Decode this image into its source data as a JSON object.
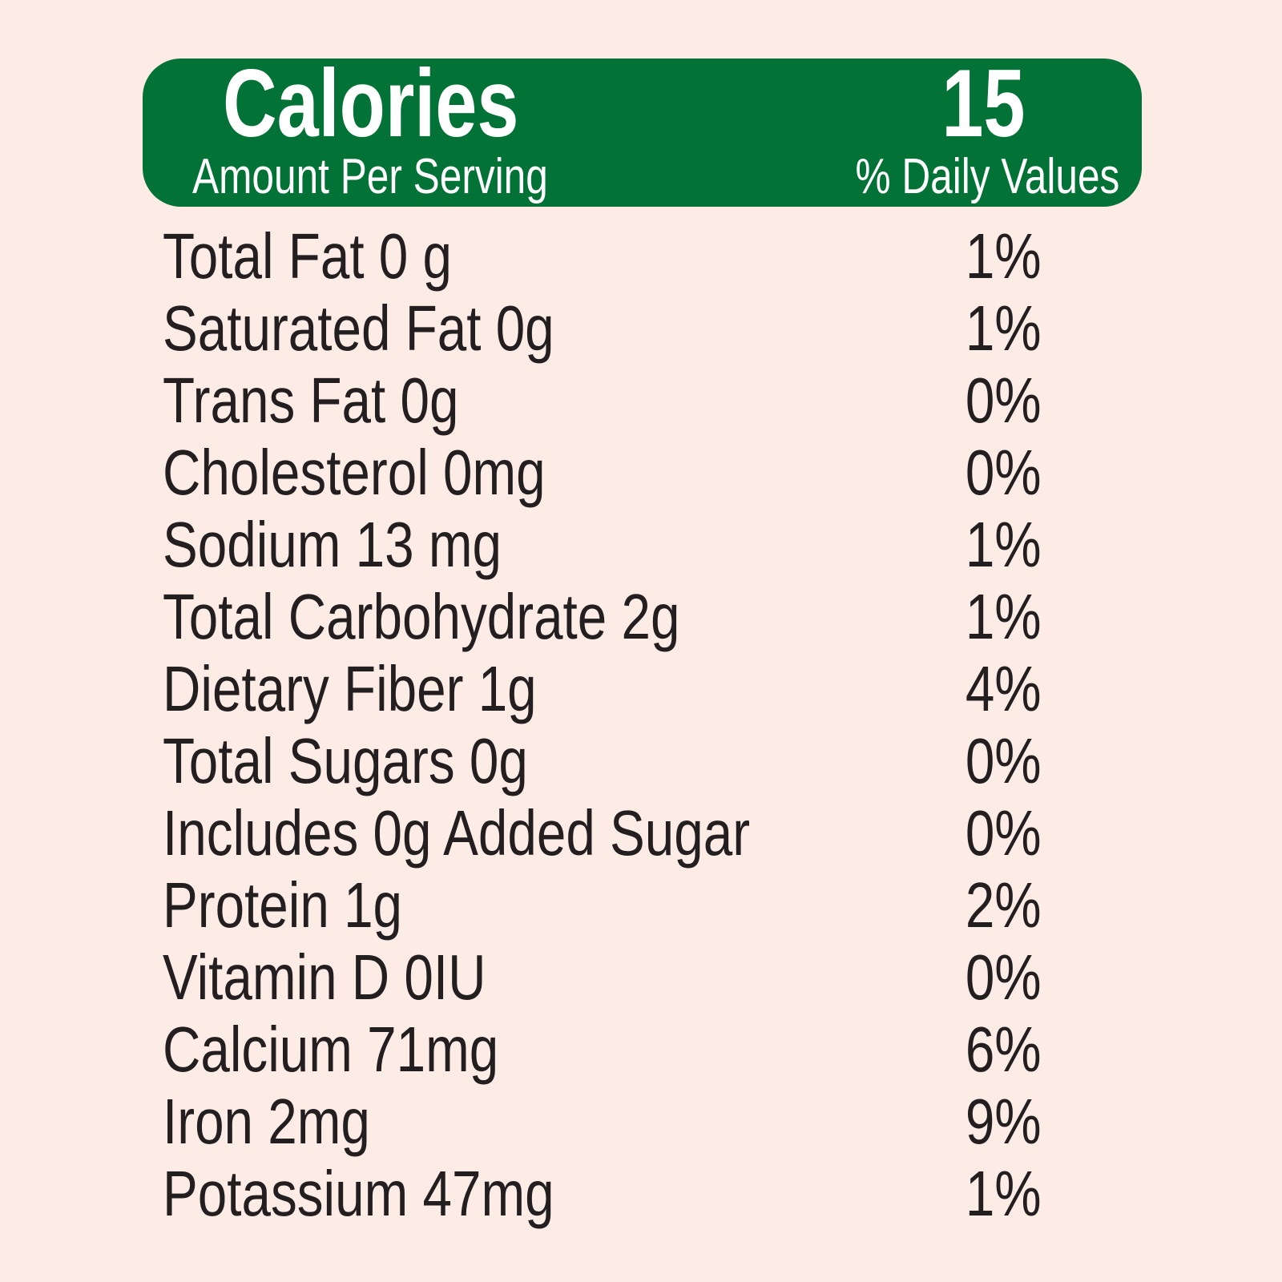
{
  "header": {
    "calories_label": "Calories",
    "calories_value": "15",
    "amount_per_serving": "Amount Per Serving",
    "daily_values": "% Daily Values",
    "color": "#037236"
  },
  "nutrients": [
    {
      "label": "Total Fat 0 g",
      "dv": "1%"
    },
    {
      "label": "Saturated Fat 0g",
      "dv": "1%"
    },
    {
      "label": "Trans Fat 0g",
      "dv": "0%"
    },
    {
      "label": "Cholesterol 0mg",
      "dv": "0%"
    },
    {
      "label": "Sodium 13 mg",
      "dv": "1%"
    },
    {
      "label": "Total Carbohydrate 2g",
      "dv": "1%"
    },
    {
      "label": "Dietary Fiber 1g",
      "dv": "4%"
    },
    {
      "label": "Total Sugars 0g",
      "dv": "0%"
    },
    {
      "label": "Includes 0g Added Sugar",
      "dv": "0%"
    },
    {
      "label": "Protein 1g",
      "dv": "2%"
    },
    {
      "label": "Vitamin D 0IU",
      "dv": "0%"
    },
    {
      "label": "Calcium 71mg",
      "dv": "6%"
    },
    {
      "label": "Iron 2mg",
      "dv": "9%"
    },
    {
      "label": "Potassium 47mg",
      "dv": "1%"
    }
  ]
}
